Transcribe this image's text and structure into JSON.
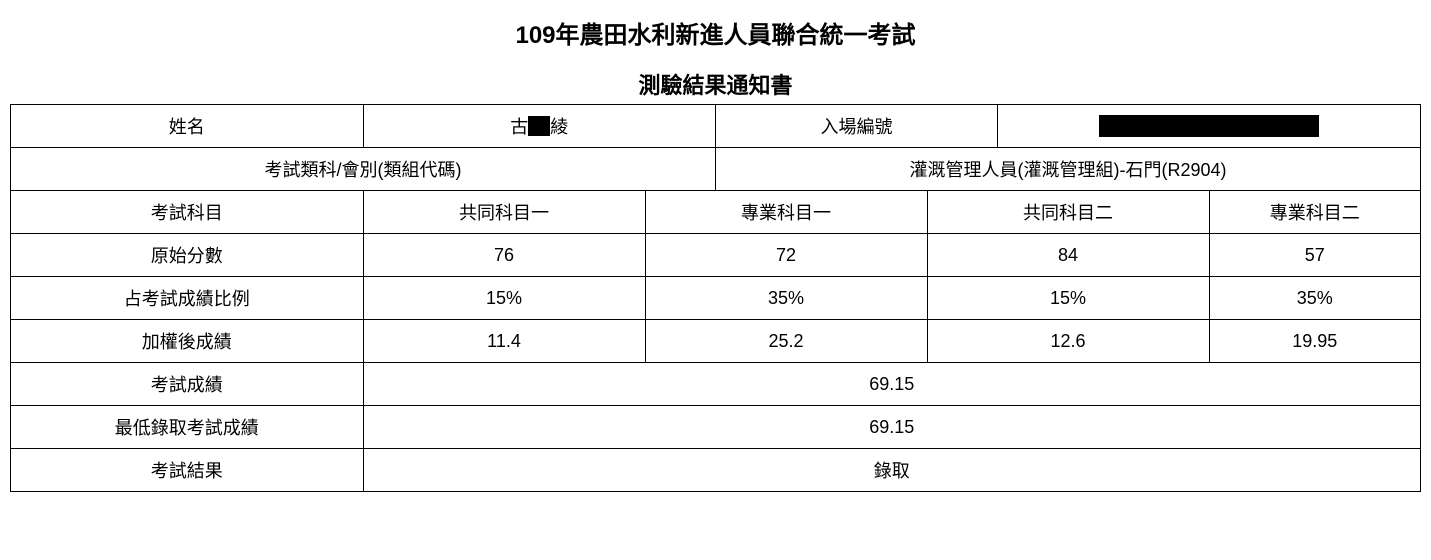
{
  "title": "109年農田水利新進人員聯合統一考試",
  "subtitle": "測驗結果通知書",
  "row1": {
    "name_label": "姓名",
    "name_part1": "古",
    "name_part2": "綾",
    "ticket_label": "入場編號"
  },
  "row2": {
    "category_label": "考試類科/會別(類組代碼)",
    "category_value": "灌溉管理人員(灌溉管理組)-石門(R2904)"
  },
  "subjects": {
    "label": "考試科目",
    "sub1": "共同科目一",
    "sub2": "專業科目一",
    "sub3": "共同科目二",
    "sub4": "專業科目二"
  },
  "raw": {
    "label": "原始分數",
    "v1": "76",
    "v2": "72",
    "v3": "84",
    "v4": "57"
  },
  "ratio": {
    "label": "占考試成績比例",
    "v1": "15%",
    "v2": "35%",
    "v3": "15%",
    "v4": "35%"
  },
  "weighted": {
    "label": "加權後成績",
    "v1": "11.4",
    "v2": "25.2",
    "v3": "12.6",
    "v4": "19.95"
  },
  "total": {
    "label": "考試成績",
    "value": "69.15"
  },
  "cutoff": {
    "label": "最低錄取考試成績",
    "value": "69.15"
  },
  "result": {
    "label": "考試結果",
    "value": "錄取"
  },
  "style": {
    "table_border_color": "#000000",
    "background_color": "#ffffff",
    "font_color": "#000000",
    "title_fontsize": 24,
    "subtitle_fontsize": 22,
    "cell_fontsize": 18,
    "redacted_color": "#000000",
    "column_count": 20,
    "column_spans": {
      "row1_name_label": 5,
      "row1_name_value": 5,
      "row1_ticket_label": 4,
      "row1_ticket_value": 6,
      "row2_cat_label": 10,
      "row2_cat_value": 10,
      "subjects_label": 5,
      "subject_col_a": 4,
      "subject_col_b": 4,
      "subject_col_c": 4,
      "subject_col_d": 3,
      "summary_label": 5,
      "summary_value": 15
    }
  }
}
